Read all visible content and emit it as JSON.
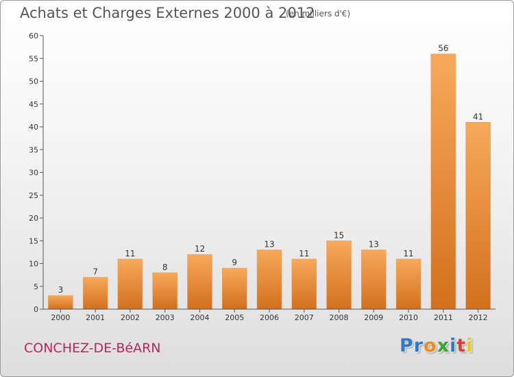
{
  "header": {
    "title": "Achats et Charges Externes 2000 à 2012",
    "subtitle": "(en milliers d'€)"
  },
  "footer": {
    "town": "CONCHEZ-DE-BéARN",
    "logo_letters": [
      {
        "char": "P",
        "color": "#2f78c4"
      },
      {
        "char": "r",
        "color": "#2f78c4"
      },
      {
        "char": "o",
        "color": "#f08a1c"
      },
      {
        "char": "x",
        "color": "#3aa632"
      },
      {
        "char": "i",
        "color": "#2f78c4"
      },
      {
        "char": "t",
        "color": "#e63a2e"
      },
      {
        "char": "i",
        "color": "#f0c419"
      }
    ]
  },
  "chart_data": {
    "type": "bar",
    "title": "Achats et Charges Externes 2000 à 2012",
    "subtitle": "(en milliers d'€)",
    "xlabel": "",
    "ylabel": "",
    "categories": [
      "2000",
      "2001",
      "2002",
      "2003",
      "2004",
      "2005",
      "2006",
      "2007",
      "2008",
      "2009",
      "2010",
      "2011",
      "2012"
    ],
    "values": [
      3,
      7,
      11,
      8,
      12,
      9,
      13,
      11,
      15,
      13,
      11,
      56,
      41
    ],
    "ylim": [
      0,
      60
    ],
    "yticks": [
      0,
      5,
      10,
      15,
      20,
      25,
      30,
      35,
      40,
      45,
      50,
      55,
      60
    ],
    "grid": false,
    "legend": "none",
    "colors": {
      "bar_light": "#f7a95a",
      "bar_dark": "#d2701e",
      "axis": "#555555"
    }
  }
}
